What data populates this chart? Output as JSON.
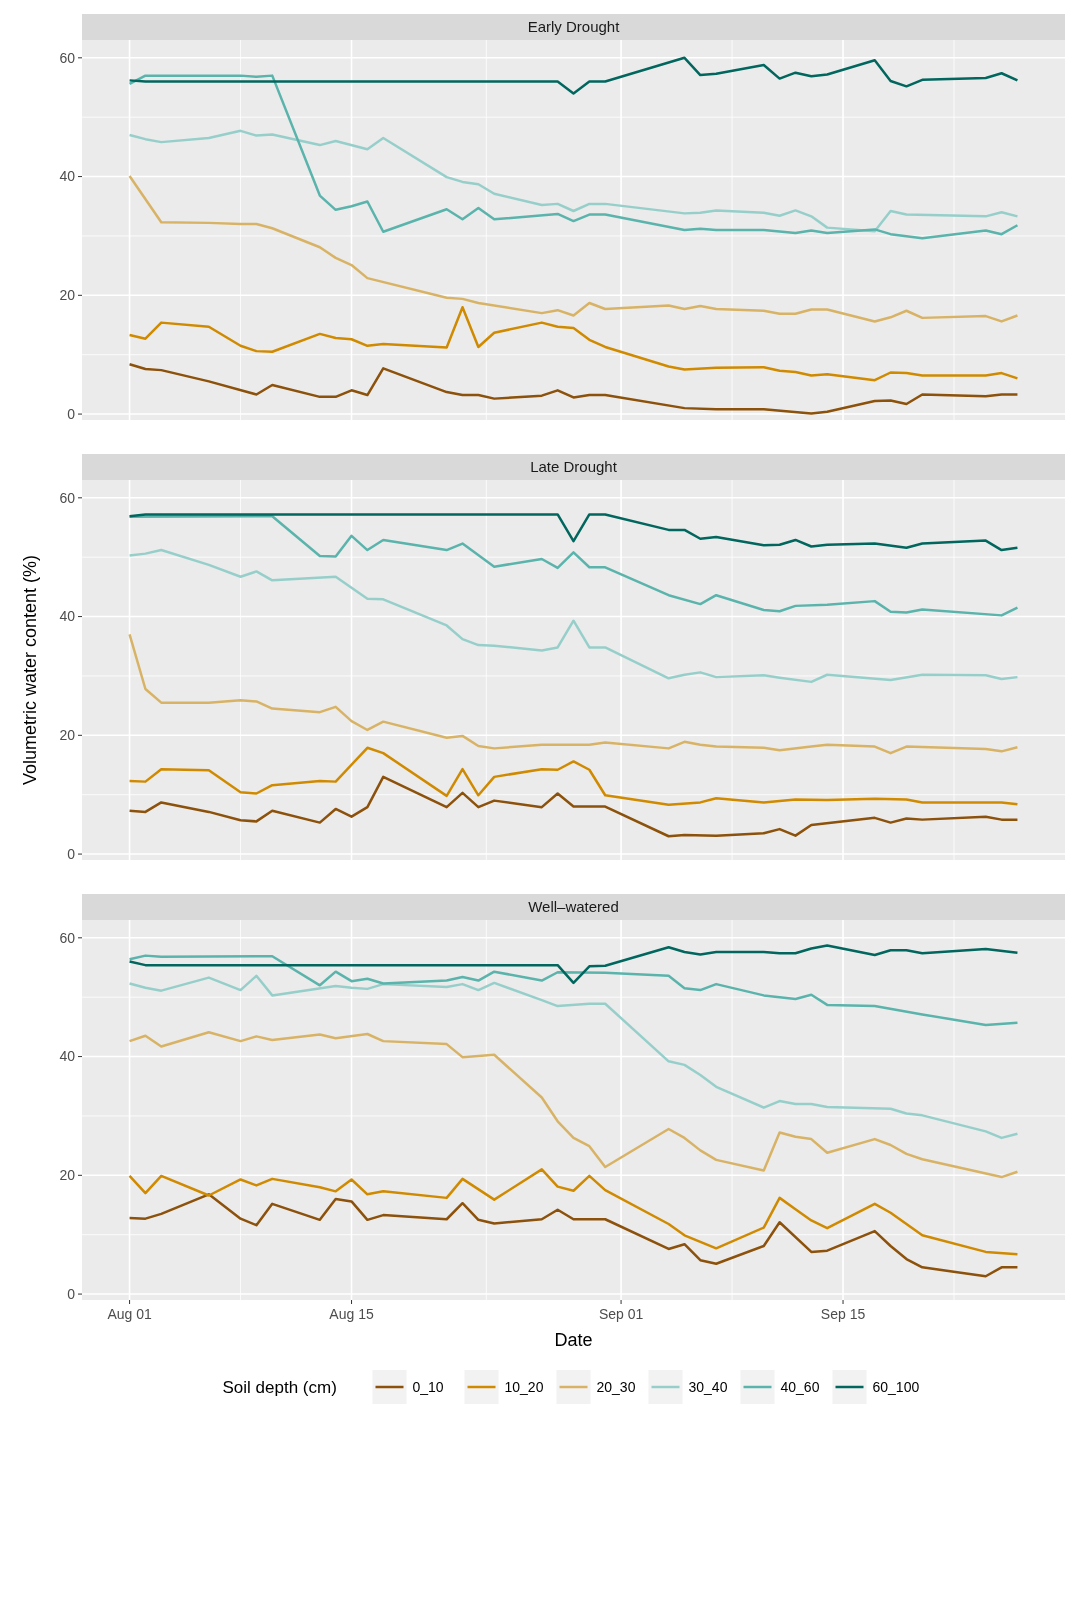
{
  "chart_data": [
    {
      "type": "line",
      "title": "Early Drought",
      "tick_labels": "y",
      "xlim": [
        "--07-29",
        "--09-29"
      ],
      "xticks": [
        {
          "value": "--08-01",
          "label": null
        },
        {
          "value": "--08-15",
          "label": null
        },
        {
          "value": "--09-01",
          "label": null
        },
        {
          "value": "--09-15",
          "label": null
        }
      ],
      "ylim": [
        -1,
        63
      ],
      "yticks": [
        0,
        20,
        40,
        60
      ],
      "grid": true,
      "series": [
        {
          "color": "#8c510a",
          "x": [
            "--08-01",
            "--08-02",
            "--08-03",
            "--08-06",
            "--08-09",
            "--08-10",
            "--08-13",
            "--08-14",
            "--08-15",
            "--08-16",
            "--08-17",
            "--08-21",
            "--08-22",
            "--08-23",
            "--08-24",
            "--08-27",
            "--08-28",
            "--08-29",
            "--08-30",
            "--08-31",
            "--09-05",
            "--09-07",
            "--09-10",
            "--09-13",
            "--09-14",
            "--09-17",
            "--09-18",
            "--09-19",
            "--09-20",
            "--09-24",
            "--09-25",
            "--09-26"
          ],
          "values": [
            8.4,
            7.6,
            7.4,
            5.5,
            3.3,
            4.9,
            2.9,
            2.9,
            4.0,
            3.2,
            7.7,
            3.7,
            3.2,
            3.2,
            2.6,
            3.1,
            4.0,
            2.8,
            3.2,
            3.2,
            1.0,
            0.8,
            0.8,
            0.1,
            0.4,
            2.2,
            2.3,
            1.7,
            3.3,
            3.0,
            3.3,
            3.3
          ]
        },
        {
          "color": "#d08a00",
          "x": [
            "--08-01",
            "--08-02",
            "--08-03",
            "--08-06",
            "--08-08",
            "--08-09",
            "--08-10",
            "--08-13",
            "--08-14",
            "--08-15",
            "--08-16",
            "--08-17",
            "--08-21",
            "--08-22",
            "--08-23",
            "--08-24",
            "--08-27",
            "--08-28",
            "--08-29",
            "--08-30",
            "--08-31",
            "--09-04",
            "--09-05",
            "--09-07",
            "--09-10",
            "--09-11",
            "--09-12",
            "--09-13",
            "--09-14",
            "--09-17",
            "--09-18",
            "--09-19",
            "--09-20",
            "--09-24",
            "--09-25",
            "--09-26"
          ],
          "values": [
            13.3,
            12.7,
            15.4,
            14.7,
            11.5,
            10.6,
            10.5,
            13.5,
            12.8,
            12.6,
            11.5,
            11.8,
            11.2,
            18.0,
            11.3,
            13.7,
            15.4,
            14.7,
            14.5,
            12.5,
            11.3,
            8.0,
            7.5,
            7.8,
            7.9,
            7.3,
            7.1,
            6.5,
            6.7,
            5.7,
            7.0,
            6.9,
            6.5,
            6.5,
            6.9,
            6.0
          ]
        },
        {
          "color": "#d8b365",
          "x": [
            "--08-01",
            "--08-03",
            "--08-06",
            "--08-08",
            "--08-09",
            "--08-10",
            "--08-13",
            "--08-14",
            "--08-15",
            "--08-16",
            "--08-21",
            "--08-22",
            "--08-23",
            "--08-27",
            "--08-28",
            "--08-29",
            "--08-30",
            "--08-31",
            "--09-04",
            "--09-05",
            "--09-06",
            "--09-07",
            "--09-10",
            "--09-11",
            "--09-12",
            "--09-13",
            "--09-14",
            "--09-17",
            "--09-18",
            "--09-19",
            "--09-20",
            "--09-24",
            "--09-25",
            "--09-26"
          ],
          "values": [
            40.1,
            32.3,
            32.2,
            32.0,
            32.0,
            31.3,
            28.1,
            26.3,
            25.1,
            22.9,
            19.6,
            19.4,
            18.7,
            17.0,
            17.5,
            16.6,
            18.7,
            17.7,
            18.3,
            17.7,
            18.2,
            17.7,
            17.4,
            16.9,
            16.9,
            17.6,
            17.6,
            15.6,
            16.3,
            17.4,
            16.2,
            16.5,
            15.6,
            16.6
          ]
        },
        {
          "color": "#96cfca",
          "x": [
            "--08-01",
            "--08-02",
            "--08-03",
            "--08-06",
            "--08-08",
            "--08-09",
            "--08-10",
            "--08-13",
            "--08-14",
            "--08-16",
            "--08-17",
            "--08-21",
            "--08-22",
            "--08-23",
            "--08-24",
            "--08-27",
            "--08-28",
            "--08-29",
            "--08-30",
            "--08-31",
            "--09-05",
            "--09-06",
            "--09-07",
            "--09-10",
            "--09-11",
            "--09-12",
            "--09-13",
            "--09-14",
            "--09-17",
            "--09-18",
            "--09-19",
            "--09-24",
            "--09-25",
            "--09-26"
          ],
          "values": [
            47.0,
            46.3,
            45.8,
            46.5,
            47.7,
            46.9,
            47.1,
            45.3,
            46.0,
            44.6,
            46.5,
            39.9,
            39.1,
            38.7,
            37.1,
            35.2,
            35.4,
            34.2,
            35.4,
            35.4,
            33.8,
            33.9,
            34.3,
            33.9,
            33.4,
            34.3,
            33.3,
            31.4,
            30.8,
            34.2,
            33.6,
            33.3,
            34.0,
            33.3
          ]
        },
        {
          "color": "#5ab4ac",
          "x": [
            "--08-01",
            "--08-02",
            "--08-08",
            "--08-09",
            "--08-10",
            "--08-13",
            "--08-14",
            "--08-15",
            "--08-16",
            "--08-17",
            "--08-21",
            "--08-22",
            "--08-23",
            "--08-24",
            "--08-28",
            "--08-29",
            "--08-30",
            "--08-31",
            "--09-05",
            "--09-06",
            "--09-07",
            "--09-10",
            "--09-12",
            "--09-13",
            "--09-14",
            "--09-17",
            "--09-18",
            "--09-20",
            "--09-24",
            "--09-25",
            "--09-26"
          ],
          "values": [
            55.6,
            57.0,
            57.0,
            56.8,
            57.0,
            36.8,
            34.4,
            35.0,
            35.8,
            30.7,
            34.5,
            32.8,
            34.7,
            32.8,
            33.7,
            32.5,
            33.6,
            33.6,
            31.0,
            31.2,
            31.0,
            31.0,
            30.5,
            30.9,
            30.5,
            31.1,
            30.3,
            29.6,
            30.9,
            30.3,
            31.8
          ]
        },
        {
          "color": "#01665e",
          "x": [
            "--08-01",
            "--08-02",
            "--08-28",
            "--08-29",
            "--08-30",
            "--08-31",
            "--09-05",
            "--09-06",
            "--09-07",
            "--09-10",
            "--09-11",
            "--09-12",
            "--09-13",
            "--09-14",
            "--09-17",
            "--09-18",
            "--09-19",
            "--09-20",
            "--09-24",
            "--09-25",
            "--09-26"
          ],
          "values": [
            56.2,
            56.0,
            56.0,
            54.0,
            56.0,
            56.0,
            60.0,
            57.1,
            57.3,
            58.8,
            56.5,
            57.5,
            56.9,
            57.2,
            59.6,
            56.1,
            55.2,
            56.3,
            56.6,
            57.4,
            56.2
          ]
        }
      ]
    },
    {
      "type": "line",
      "title": "Late Drought",
      "ylabel": "Volumetric water content (%)",
      "tick_labels": "y",
      "xlim": [
        "--07-29",
        "--09-29"
      ],
      "xticks": [
        {
          "value": "--08-01",
          "label": null
        },
        {
          "value": "--08-15",
          "label": null
        },
        {
          "value": "--09-01",
          "label": null
        },
        {
          "value": "--09-15",
          "label": null
        }
      ],
      "ylim": [
        -1,
        63
      ],
      "yticks": [
        0,
        20,
        40,
        60
      ],
      "grid": true,
      "series": [
        {
          "color": "#8c510a",
          "x": [
            "--08-01",
            "--08-02",
            "--08-03",
            "--08-06",
            "--08-08",
            "--08-09",
            "--08-10",
            "--08-13",
            "--08-14",
            "--08-15",
            "--08-16",
            "--08-17",
            "--08-21",
            "--08-22",
            "--08-23",
            "--08-24",
            "--08-27",
            "--08-28",
            "--08-29",
            "--08-31",
            "--09-04",
            "--09-05",
            "--09-07",
            "--09-10",
            "--09-11",
            "--09-12",
            "--09-13",
            "--09-17",
            "--09-18",
            "--09-19",
            "--09-20",
            "--09-24",
            "--09-25",
            "--09-26"
          ],
          "values": [
            7.3,
            7.1,
            8.7,
            7.1,
            5.7,
            5.5,
            7.3,
            5.3,
            7.6,
            6.3,
            7.9,
            13.0,
            7.9,
            10.3,
            7.9,
            9.0,
            7.9,
            10.2,
            8.0,
            8.0,
            3.0,
            3.2,
            3.1,
            3.5,
            4.2,
            3.1,
            4.9,
            6.1,
            5.3,
            6.0,
            5.8,
            6.3,
            5.8,
            5.8
          ]
        },
        {
          "color": "#d08a00",
          "x": [
            "--08-01",
            "--08-02",
            "--08-03",
            "--08-06",
            "--08-08",
            "--08-09",
            "--08-10",
            "--08-13",
            "--08-14",
            "--08-16",
            "--08-17",
            "--08-21",
            "--08-22",
            "--08-23",
            "--08-24",
            "--08-27",
            "--08-28",
            "--08-29",
            "--08-30",
            "--08-31",
            "--09-04",
            "--09-06",
            "--09-07",
            "--09-10",
            "--09-12",
            "--09-14",
            "--09-17",
            "--09-19",
            "--09-20",
            "--09-25",
            "--09-26"
          ],
          "values": [
            12.3,
            12.2,
            14.3,
            14.1,
            10.4,
            10.2,
            11.6,
            12.3,
            12.2,
            17.9,
            17.0,
            9.8,
            14.3,
            9.9,
            13.0,
            14.3,
            14.2,
            15.6,
            14.2,
            9.9,
            8.3,
            8.7,
            9.4,
            8.7,
            9.2,
            9.1,
            9.3,
            9.2,
            8.7,
            8.7,
            8.4
          ]
        },
        {
          "color": "#d8b365",
          "x": [
            "--08-01",
            "--08-02",
            "--08-03",
            "--08-06",
            "--08-08",
            "--08-09",
            "--08-10",
            "--08-13",
            "--08-14",
            "--08-15",
            "--08-16",
            "--08-17",
            "--08-21",
            "--08-22",
            "--08-23",
            "--08-24",
            "--08-27",
            "--08-30",
            "--08-31",
            "--09-04",
            "--09-05",
            "--09-06",
            "--09-07",
            "--09-10",
            "--09-11",
            "--09-13",
            "--09-14",
            "--09-17",
            "--09-18",
            "--09-19",
            "--09-24",
            "--09-25",
            "--09-26"
          ],
          "values": [
            37.0,
            27.8,
            25.5,
            25.5,
            25.9,
            25.7,
            24.5,
            23.9,
            24.8,
            22.4,
            20.9,
            22.3,
            19.6,
            19.9,
            18.2,
            17.8,
            18.4,
            18.4,
            18.8,
            17.8,
            18.9,
            18.4,
            18.1,
            17.9,
            17.5,
            18.1,
            18.4,
            18.1,
            17.0,
            18.1,
            17.7,
            17.3,
            18.0
          ]
        },
        {
          "color": "#96cfca",
          "x": [
            "--08-01",
            "--08-02",
            "--08-03",
            "--08-06",
            "--08-08",
            "--08-09",
            "--08-10",
            "--08-14",
            "--08-16",
            "--08-17",
            "--08-21",
            "--08-22",
            "--08-23",
            "--08-24",
            "--08-27",
            "--08-28",
            "--08-29",
            "--08-30",
            "--08-31",
            "--09-04",
            "--09-05",
            "--09-06",
            "--09-07",
            "--09-10",
            "--09-11",
            "--09-13",
            "--09-14",
            "--09-18",
            "--09-20",
            "--09-24",
            "--09-25",
            "--09-26"
          ],
          "values": [
            50.3,
            50.6,
            51.2,
            48.7,
            46.7,
            47.6,
            46.1,
            46.7,
            43.0,
            42.9,
            38.5,
            36.2,
            35.2,
            35.1,
            34.3,
            34.8,
            39.3,
            34.8,
            34.8,
            29.6,
            30.2,
            30.6,
            29.8,
            30.1,
            29.7,
            29.0,
            30.2,
            29.3,
            30.2,
            30.1,
            29.5,
            29.8
          ]
        },
        {
          "color": "#5ab4ac",
          "x": [
            "--08-01",
            "--08-10",
            "--08-13",
            "--08-14",
            "--08-15",
            "--08-16",
            "--08-17",
            "--08-21",
            "--08-22",
            "--08-24",
            "--08-27",
            "--08-28",
            "--08-29",
            "--08-30",
            "--08-31",
            "--09-04",
            "--09-06",
            "--09-07",
            "--09-10",
            "--09-11",
            "--09-12",
            "--09-14",
            "--09-17",
            "--09-18",
            "--09-19",
            "--09-20",
            "--09-25",
            "--09-26"
          ],
          "values": [
            56.8,
            56.9,
            50.2,
            50.1,
            53.6,
            51.2,
            52.9,
            51.2,
            52.3,
            48.4,
            49.7,
            48.2,
            50.8,
            48.3,
            48.3,
            43.6,
            42.1,
            43.6,
            41.1,
            40.9,
            41.8,
            42.0,
            42.6,
            40.8,
            40.7,
            41.2,
            40.2,
            41.5
          ]
        },
        {
          "color": "#01665e",
          "x": [
            "--08-01",
            "--08-02",
            "--08-28",
            "--08-29",
            "--08-30",
            "--08-31",
            "--09-04",
            "--09-05",
            "--09-06",
            "--09-07",
            "--09-10",
            "--09-11",
            "--09-12",
            "--09-13",
            "--09-14",
            "--09-17",
            "--09-19",
            "--09-20",
            "--09-24",
            "--09-25",
            "--09-26"
          ],
          "values": [
            56.9,
            57.2,
            57.2,
            52.7,
            57.2,
            57.2,
            54.6,
            54.6,
            53.1,
            53.4,
            52.0,
            52.1,
            52.9,
            51.8,
            52.1,
            52.3,
            51.6,
            52.3,
            52.8,
            51.2,
            51.6
          ]
        }
      ]
    },
    {
      "type": "line",
      "title": "Well–watered",
      "xlabel": "Date",
      "legend": "bottom",
      "legend_title": "Soil depth (cm)",
      "xlim": [
        "--07-29",
        "--09-29"
      ],
      "xticks": [
        {
          "value": "--08-01",
          "label": "Aug 01"
        },
        {
          "value": "--08-15",
          "label": "Aug 15"
        },
        {
          "value": "--09-01",
          "label": "Sep 01"
        },
        {
          "value": "--09-15",
          "label": "Sep 15"
        }
      ],
      "ylim": [
        -1,
        63
      ],
      "yticks": [
        0,
        20,
        40,
        60
      ],
      "grid": true,
      "series": [
        {
          "name": "0_10",
          "color": "#8c510a",
          "x": [
            "--08-01",
            "--08-02",
            "--08-03",
            "--08-06",
            "--08-08",
            "--08-09",
            "--08-10",
            "--08-13",
            "--08-14",
            "--08-15",
            "--08-16",
            "--08-17",
            "--08-21",
            "--08-22",
            "--08-23",
            "--08-24",
            "--08-27",
            "--08-28",
            "--08-29",
            "--08-31",
            "--09-04",
            "--09-05",
            "--09-06",
            "--09-07",
            "--09-10",
            "--09-11",
            "--09-13",
            "--09-14",
            "--09-17",
            "--09-18",
            "--09-19",
            "--09-20",
            "--09-24",
            "--09-25",
            "--09-26"
          ],
          "values": [
            12.8,
            12.7,
            13.5,
            16.8,
            12.7,
            11.6,
            15.2,
            12.5,
            16.0,
            15.6,
            12.5,
            13.3,
            12.6,
            15.3,
            12.5,
            11.9,
            12.6,
            14.2,
            12.6,
            12.6,
            7.6,
            8.4,
            5.7,
            5.1,
            8.1,
            12.1,
            7.1,
            7.3,
            10.6,
            8.1,
            5.9,
            4.5,
            3.0,
            4.5,
            4.5
          ]
        },
        {
          "name": "10_20",
          "color": "#d08a00",
          "x": [
            "--08-01",
            "--08-02",
            "--08-03",
            "--08-06",
            "--08-08",
            "--08-09",
            "--08-10",
            "--08-13",
            "--08-14",
            "--08-15",
            "--08-16",
            "--08-17",
            "--08-21",
            "--08-22",
            "--08-24",
            "--08-27",
            "--08-28",
            "--08-29",
            "--08-30",
            "--08-31",
            "--09-04",
            "--09-05",
            "--09-07",
            "--09-10",
            "--09-11",
            "--09-12",
            "--09-13",
            "--09-14",
            "--09-17",
            "--09-18",
            "--09-20",
            "--09-24",
            "--09-26"
          ],
          "values": [
            19.9,
            17.0,
            19.9,
            16.6,
            19.3,
            18.3,
            19.4,
            18.0,
            17.3,
            19.3,
            16.8,
            17.3,
            16.2,
            19.4,
            15.9,
            21.0,
            18.1,
            17.4,
            19.9,
            17.5,
            11.8,
            9.9,
            7.7,
            11.2,
            16.2,
            14.3,
            12.4,
            11.1,
            15.2,
            13.7,
            9.9,
            7.1,
            6.7
          ]
        },
        {
          "name": "20_30",
          "color": "#d8b365",
          "x": [
            "--08-01",
            "--08-02",
            "--08-03",
            "--08-06",
            "--08-08",
            "--08-09",
            "--08-10",
            "--08-13",
            "--08-14",
            "--08-16",
            "--08-17",
            "--08-21",
            "--08-22",
            "--08-24",
            "--08-27",
            "--08-28",
            "--08-29",
            "--08-30",
            "--08-31",
            "--09-04",
            "--09-05",
            "--09-06",
            "--09-07",
            "--09-10",
            "--09-11",
            "--09-12",
            "--09-13",
            "--09-14",
            "--09-17",
            "--09-18",
            "--09-19",
            "--09-20",
            "--09-25",
            "--09-26"
          ],
          "values": [
            42.6,
            43.5,
            41.7,
            44.1,
            42.6,
            43.4,
            42.8,
            43.7,
            43.1,
            43.8,
            42.6,
            42.1,
            39.9,
            40.3,
            33.1,
            29.1,
            26.3,
            24.9,
            21.4,
            27.8,
            26.3,
            24.2,
            22.6,
            20.8,
            27.2,
            26.5,
            26.1,
            23.8,
            26.1,
            25.1,
            23.6,
            22.7,
            19.7,
            20.6
          ]
        },
        {
          "name": "30_40",
          "color": "#96cfca",
          "x": [
            "--08-01",
            "--08-02",
            "--08-03",
            "--08-06",
            "--08-08",
            "--08-09",
            "--08-10",
            "--08-14",
            "--08-15",
            "--08-16",
            "--08-17",
            "--08-21",
            "--08-22",
            "--08-23",
            "--08-24",
            "--08-27",
            "--08-28",
            "--08-30",
            "--08-31",
            "--09-04",
            "--09-05",
            "--09-06",
            "--09-07",
            "--09-10",
            "--09-11",
            "--09-12",
            "--09-13",
            "--09-14",
            "--09-18",
            "--09-19",
            "--09-20",
            "--09-24",
            "--09-25",
            "--09-26"
          ],
          "values": [
            52.3,
            51.6,
            51.1,
            53.3,
            51.2,
            53.6,
            50.3,
            51.9,
            51.6,
            51.4,
            52.2,
            51.7,
            52.2,
            51.2,
            52.4,
            49.5,
            48.5,
            48.9,
            48.9,
            39.2,
            38.6,
            36.9,
            34.9,
            31.4,
            32.5,
            32.0,
            32.0,
            31.5,
            31.2,
            30.4,
            30.1,
            27.4,
            26.3,
            27.0
          ]
        },
        {
          "name": "40_60",
          "color": "#5ab4ac",
          "x": [
            "--08-01",
            "--08-02",
            "--08-03",
            "--08-10",
            "--08-13",
            "--08-14",
            "--08-15",
            "--08-16",
            "--08-17",
            "--08-21",
            "--08-22",
            "--08-23",
            "--08-24",
            "--08-27",
            "--08-28",
            "--08-31",
            "--09-04",
            "--09-05",
            "--09-06",
            "--09-07",
            "--09-10",
            "--09-12",
            "--09-13",
            "--09-14",
            "--09-17",
            "--09-20",
            "--09-24",
            "--09-26"
          ],
          "values": [
            56.4,
            57.0,
            56.8,
            56.9,
            52.0,
            54.3,
            52.7,
            53.1,
            52.3,
            52.8,
            53.4,
            52.8,
            54.3,
            52.8,
            54.2,
            54.1,
            53.6,
            51.5,
            51.2,
            52.2,
            50.3,
            49.7,
            50.4,
            48.7,
            48.5,
            47.1,
            45.3,
            45.7
          ]
        },
        {
          "name": "60_100",
          "color": "#01665e",
          "x": [
            "--08-01",
            "--08-02",
            "--08-28",
            "--08-29",
            "--08-30",
            "--08-31",
            "--09-04",
            "--09-05",
            "--09-06",
            "--09-07",
            "--09-10",
            "--09-11",
            "--09-12",
            "--09-13",
            "--09-14",
            "--09-17",
            "--09-18",
            "--09-19",
            "--09-20",
            "--09-24",
            "--09-26"
          ],
          "values": [
            56.0,
            55.4,
            55.4,
            52.4,
            55.2,
            55.3,
            58.4,
            57.6,
            57.2,
            57.6,
            57.6,
            57.4,
            57.4,
            58.2,
            58.7,
            57.1,
            57.9,
            57.9,
            57.4,
            58.1,
            57.5
          ]
        }
      ]
    }
  ]
}
